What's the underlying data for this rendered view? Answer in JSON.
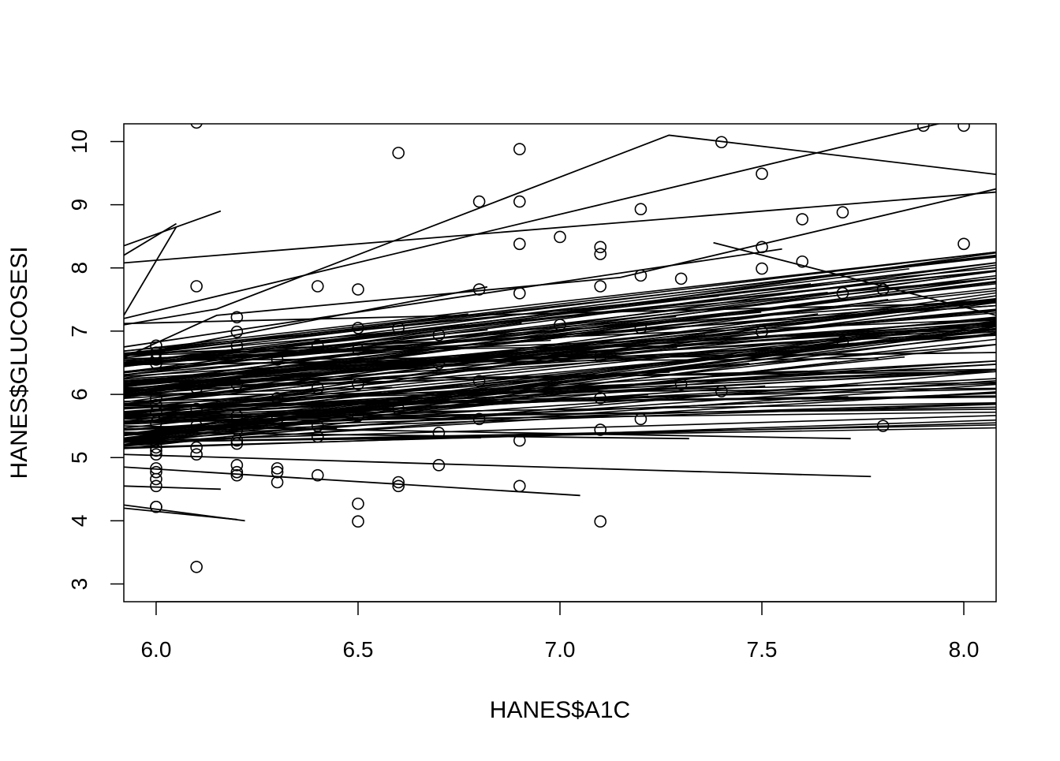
{
  "chart_data": {
    "type": "scatter",
    "title": "",
    "xlabel": "HANES$A1C",
    "ylabel": "HANES$GLUCOSESI",
    "xlim": [
      5.92,
      8.08
    ],
    "ylim": [
      2.72,
      10.28
    ],
    "grid": false,
    "x_ticks": [
      "6.0",
      "6.5",
      "7.0",
      "7.5",
      "8.0"
    ],
    "y_ticks": [
      "3",
      "4",
      "5",
      "6",
      "7",
      "8",
      "9",
      "10"
    ],
    "colors": {
      "stroke": "#000000",
      "background": "#ffffff"
    },
    "points": [
      [
        6.1,
        10.3
      ],
      [
        6.6,
        9.82
      ],
      [
        6.9,
        9.88
      ],
      [
        6.8,
        9.05
      ],
      [
        6.9,
        9.05
      ],
      [
        7.4,
        9.99
      ],
      [
        7.5,
        9.49
      ],
      [
        7.9,
        10.25
      ],
      [
        8.0,
        10.25
      ],
      [
        6.9,
        8.38
      ],
      [
        7.0,
        8.49
      ],
      [
        7.1,
        8.33
      ],
      [
        7.1,
        8.22
      ],
      [
        7.2,
        8.93
      ],
      [
        7.6,
        8.77
      ],
      [
        7.7,
        8.88
      ],
      [
        7.5,
        8.33
      ],
      [
        7.6,
        8.1
      ],
      [
        7.5,
        7.99
      ],
      [
        8.0,
        8.38
      ],
      [
        6.1,
        7.71
      ],
      [
        6.4,
        7.71
      ],
      [
        6.5,
        7.66
      ],
      [
        6.8,
        7.66
      ],
      [
        6.9,
        7.6
      ],
      [
        7.1,
        7.71
      ],
      [
        7.2,
        7.88
      ],
      [
        7.3,
        7.83
      ],
      [
        7.7,
        7.6
      ],
      [
        7.8,
        7.66
      ],
      [
        6.2,
        7.22
      ],
      [
        6.2,
        6.99
      ],
      [
        6.5,
        7.05
      ],
      [
        6.6,
        7.05
      ],
      [
        6.7,
        6.94
      ],
      [
        7.0,
        7.1
      ],
      [
        7.2,
        7.05
      ],
      [
        7.5,
        6.99
      ],
      [
        7.7,
        6.83
      ],
      [
        7.1,
        6.6
      ],
      [
        6.0,
        6.77
      ],
      [
        6.0,
        6.66
      ],
      [
        6.0,
        6.55
      ],
      [
        6.0,
        6.49
      ],
      [
        6.2,
        6.77
      ],
      [
        6.4,
        6.77
      ],
      [
        6.5,
        6.71
      ],
      [
        6.7,
        6.49
      ],
      [
        6.3,
        6.55
      ],
      [
        6.1,
        6.1
      ],
      [
        6.2,
        6.16
      ],
      [
        6.3,
        5.94
      ],
      [
        6.4,
        6.1
      ],
      [
        6.5,
        6.16
      ],
      [
        6.8,
        6.21
      ],
      [
        7.3,
        6.16
      ],
      [
        7.4,
        6.05
      ],
      [
        7.1,
        5.94
      ],
      [
        6.0,
        5.94
      ],
      [
        6.0,
        5.83
      ],
      [
        6.0,
        5.72
      ],
      [
        6.1,
        5.77
      ],
      [
        6.2,
        5.66
      ],
      [
        6.3,
        5.61
      ],
      [
        6.5,
        5.66
      ],
      [
        6.6,
        5.77
      ],
      [
        6.8,
        5.61
      ],
      [
        7.2,
        5.61
      ],
      [
        6.0,
        5.55
      ],
      [
        6.1,
        5.5
      ],
      [
        6.2,
        5.44
      ],
      [
        6.4,
        5.5
      ],
      [
        6.4,
        5.33
      ],
      [
        6.7,
        5.39
      ],
      [
        6.9,
        5.27
      ],
      [
        7.1,
        5.44
      ],
      [
        7.8,
        5.5
      ],
      [
        6.0,
        5.16
      ],
      [
        6.0,
        5.11
      ],
      [
        6.0,
        5.05
      ],
      [
        6.1,
        5.16
      ],
      [
        6.1,
        5.05
      ],
      [
        6.2,
        5.27
      ],
      [
        6.2,
        5.22
      ],
      [
        6.0,
        4.83
      ],
      [
        6.0,
        4.77
      ],
      [
        6.0,
        4.66
      ],
      [
        6.0,
        4.55
      ],
      [
        6.2,
        4.88
      ],
      [
        6.2,
        4.77
      ],
      [
        6.2,
        4.72
      ],
      [
        6.3,
        4.83
      ],
      [
        6.3,
        4.77
      ],
      [
        6.3,
        4.61
      ],
      [
        6.4,
        4.72
      ],
      [
        6.6,
        4.61
      ],
      [
        6.6,
        4.55
      ],
      [
        6.7,
        4.88
      ],
      [
        6.9,
        4.55
      ],
      [
        6.5,
        4.27
      ],
      [
        6.5,
        3.99
      ],
      [
        6.0,
        4.22
      ],
      [
        6.0,
        4.22
      ],
      [
        7.1,
        3.99
      ],
      [
        6.1,
        3.27
      ]
    ],
    "distinct_lines": [
      [
        [
          5.92,
          7.1
        ],
        [
          6.15,
          7.35
        ],
        [
          7.27,
          10.1
        ],
        [
          8.08,
          9.48
        ]
      ],
      [
        [
          5.92,
          7.2
        ],
        [
          7.95,
          10.3
        ]
      ],
      [
        [
          5.92,
          8.08
        ],
        [
          8.08,
          9.2
        ]
      ],
      [
        [
          5.92,
          8.35
        ],
        [
          6.16,
          8.9
        ]
      ],
      [
        [
          5.92,
          8.2
        ],
        [
          6.05,
          8.7
        ]
      ],
      [
        [
          5.92,
          7.25
        ],
        [
          6.05,
          8.65
        ]
      ],
      [
        [
          5.92,
          6.58
        ],
        [
          6.15,
          7.25
        ],
        [
          7.15,
          7.85
        ],
        [
          8.08,
          9.25
        ]
      ],
      [
        [
          5.92,
          6.6
        ],
        [
          6.82,
          7.7
        ]
      ],
      [
        [
          5.92,
          6.75
        ],
        [
          7.55,
          8.3
        ]
      ],
      [
        [
          7.38,
          8.4
        ],
        [
          8.08,
          7.25
        ]
      ],
      [
        [
          5.92,
          7.12
        ],
        [
          8.08,
          7.45
        ]
      ],
      [
        [
          5.92,
          5.05
        ],
        [
          7.22,
          4.8
        ],
        [
          7.77,
          4.7
        ]
      ],
      [
        [
          5.92,
          4.85
        ],
        [
          7.05,
          4.4
        ]
      ],
      [
        [
          5.92,
          4.55
        ],
        [
          6.16,
          4.5
        ]
      ],
      [
        [
          5.92,
          4.25
        ],
        [
          6.22,
          4.0
        ]
      ],
      [
        [
          5.92,
          4.2
        ],
        [
          6.2,
          4.02
        ]
      ],
      [
        [
          5.92,
          5.4
        ],
        [
          7.32,
          5.3
        ]
      ],
      [
        [
          5.92,
          5.5
        ],
        [
          7.72,
          5.3
        ]
      ]
    ],
    "regression_bundle": {
      "count": 150,
      "x_range": [
        5.92,
        8.08
      ],
      "start_y_range": [
        5.1,
        6.7
      ],
      "end_y_range": [
        5.4,
        8.25
      ]
    }
  }
}
